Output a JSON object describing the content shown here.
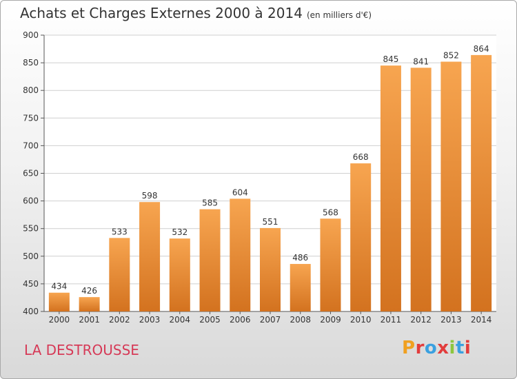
{
  "header": {
    "title": "Achats et Charges Externes 2000 à 2014",
    "unit": "(en milliers d'€)"
  },
  "footer": {
    "commune": "LA DESTROUSSE",
    "logo_text": "Proxiti",
    "logo_colors": [
      "#f0a020",
      "#e23c3c",
      "#3aa0e0",
      "#e23c3c",
      "#8cc63f",
      "#3aa0e0",
      "#e23c3c"
    ]
  },
  "colors": {
    "bar_light": "#f7a550",
    "bar_dark": "#d3721f",
    "grid": "#cfcfcf",
    "text": "#333333",
    "commune": "#d63a57"
  },
  "chart_data": {
    "type": "bar",
    "title": "Achats et Charges Externes 2000 à 2014",
    "subtitle": "(en milliers d'€)",
    "xlabel": "",
    "ylabel": "",
    "categories": [
      "2000",
      "2001",
      "2002",
      "2003",
      "2004",
      "2005",
      "2006",
      "2007",
      "2008",
      "2009",
      "2010",
      "2011",
      "2012",
      "2013",
      "2014"
    ],
    "values": [
      434,
      426,
      533,
      598,
      532,
      585,
      604,
      551,
      486,
      568,
      668,
      845,
      841,
      852,
      864
    ],
    "ylim": [
      400,
      900
    ],
    "yticks": [
      400,
      450,
      500,
      550,
      600,
      650,
      700,
      750,
      800,
      850,
      900
    ],
    "grid": true,
    "data_labels": true
  }
}
